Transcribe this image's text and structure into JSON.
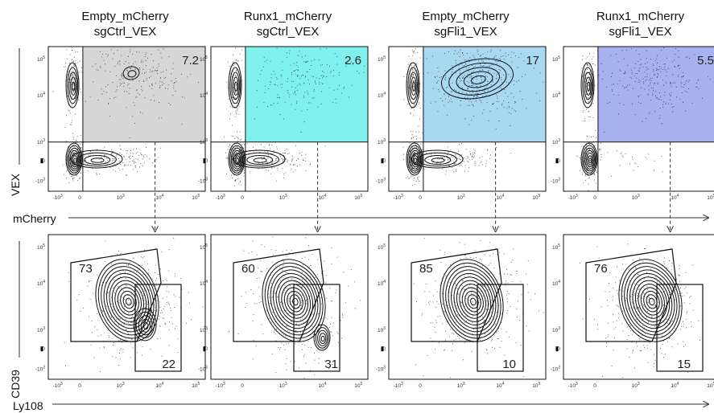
{
  "panels": [
    {
      "title_line1": "Empty_mCherry",
      "title_line2": "sgCtrl_VEX",
      "top_gate_value": "7.2",
      "top_gate_color": "#d6d6d6",
      "bottom_left_value": "73",
      "bottom_right_value": "22"
    },
    {
      "title_line1": "Runx1_mCherry",
      "title_line2": "sgCtrl_VEX",
      "top_gate_value": "2.6",
      "top_gate_color": "#7ff0ee",
      "bottom_left_value": "60",
      "bottom_right_value": "31"
    },
    {
      "title_line1": "Empty_mCherry",
      "title_line2": "sgFli1_VEX",
      "top_gate_value": "17",
      "top_gate_color": "#a9d8f3",
      "bottom_left_value": "85",
      "bottom_right_value": "10"
    },
    {
      "title_line1": "Runx1_mCherry",
      "title_line2": "sgFli1_VEX",
      "top_gate_value": "5.5",
      "top_gate_color": "#a7b3ee",
      "bottom_left_value": "76",
      "bottom_right_value": "15"
    }
  ],
  "axes": {
    "top_y": "VEX",
    "top_x": "mCherry",
    "bottom_y": "CD39",
    "bottom_x": "Ly108"
  },
  "ticks": {
    "y": [
      "10^5",
      "10^4",
      "10^3",
      "0",
      "-10^3"
    ],
    "x": [
      "-10^3",
      "0",
      "10^3",
      "10^4",
      "10^5"
    ]
  }
}
